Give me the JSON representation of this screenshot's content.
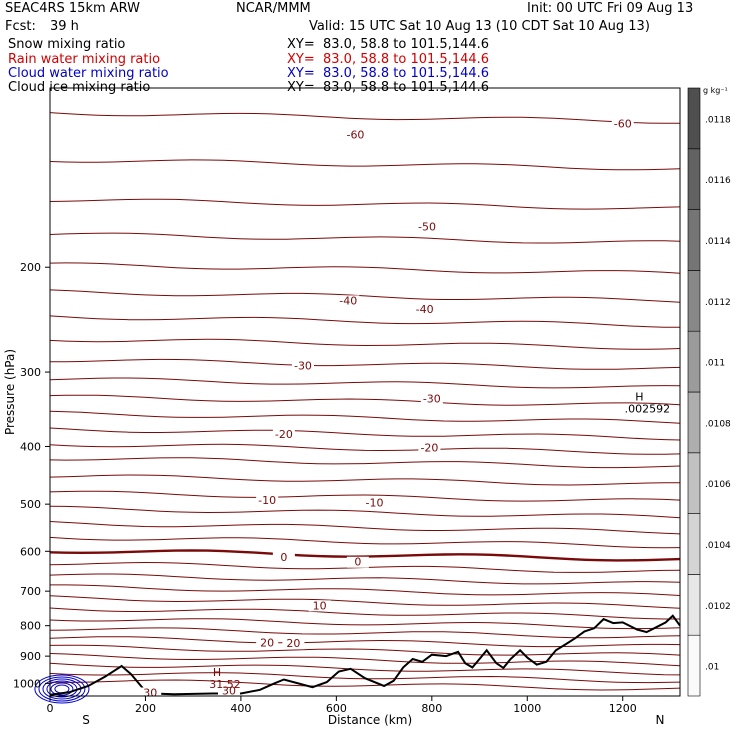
{
  "header": {
    "model": "SEAC4RS 15km ARW",
    "center": "NCAR/MMM",
    "init": "Init: 00 UTC Fri 09 Aug 13",
    "fcst_label": "Fcst:",
    "fcst_value": "39 h",
    "valid": "Valid: 15 UTC Sat 10 Aug 13 (10 CDT Sat 10 Aug 13)"
  },
  "fields": [
    {
      "label": "Snow mixing ratio",
      "xy": "XY=  83.0, 58.8 to 101.5,144.6",
      "color": "#000000"
    },
    {
      "label": "Rain water mixing ratio",
      "xy": "XY=  83.0, 58.8 to 101.5,144.6",
      "color": "#d40000"
    },
    {
      "label": "Cloud water mixing ratio",
      "xy": "XY=  83.0, 58.8 to 101.5,144.6",
      "color": "#0000c8"
    },
    {
      "label": "Cloud ice mixing ratio",
      "xy": "XY=  83.0, 58.8 to 101.5,144.6",
      "color": "#000000"
    }
  ],
  "colors": {
    "temperature_contour": "#7a0a0a",
    "terrain": "#000000",
    "cloud_water": "#0000c8"
  },
  "chart_data": {
    "type": "contour",
    "xlabel": "Distance (km)",
    "ylabel": "Pressure (hPa)",
    "xlim": [
      0,
      1320
    ],
    "ylim": [
      1050,
      100
    ],
    "y_scale": "log",
    "x_ticks": [
      "0",
      "200",
      "400",
      "600",
      "800",
      "1000",
      "1200"
    ],
    "y_ticks": [
      "200",
      "300",
      "400",
      "500",
      "600",
      "700",
      "800",
      "900",
      "1000"
    ],
    "x_endpoint_labels": {
      "left": "S",
      "right": "N"
    },
    "temperature_contour_labels": [
      {
        "text": "-60",
        "x": 640,
        "p": 121
      },
      {
        "text": "-60",
        "x": 1200,
        "p": 116
      },
      {
        "text": "-50",
        "x": 790,
        "p": 173
      },
      {
        "text": "-40",
        "x": 625,
        "p": 230
      },
      {
        "text": "-40",
        "x": 785,
        "p": 238
      },
      {
        "text": "-30",
        "x": 530,
        "p": 296
      },
      {
        "text": "-30",
        "x": 800,
        "p": 336
      },
      {
        "text": "-20",
        "x": 490,
        "p": 386
      },
      {
        "text": "-20",
        "x": 795,
        "p": 406
      },
      {
        "text": "-10",
        "x": 455,
        "p": 498
      },
      {
        "text": "-10",
        "x": 680,
        "p": 503
      },
      {
        "text": "0",
        "x": 490,
        "p": 620
      },
      {
        "text": "0",
        "x": 645,
        "p": 632
      },
      {
        "text": "10",
        "x": 565,
        "p": 748
      },
      {
        "text": "20",
        "x": 455,
        "p": 864
      },
      {
        "text": "20",
        "x": 510,
        "p": 866
      },
      {
        "text": "30",
        "x": 210,
        "p": 1048
      },
      {
        "text": "30",
        "x": 375,
        "p": 1040
      }
    ],
    "extremum_labels": [
      {
        "symbol": "H",
        "value": "31.52",
        "x": 350,
        "p": 1010
      },
      {
        "symbol": "H",
        "value": ".002592",
        "x": 1235,
        "p": 348
      }
    ],
    "colorbar": {
      "unit": "g kg⁻¹",
      "labels": [
        ".01",
        ".0102",
        ".0104",
        ".0106",
        ".0108",
        ".011",
        ".0112",
        ".0114",
        ".0116",
        ".0118"
      ]
    },
    "terrain_profile": [
      {
        "x": 0,
        "p": 1045
      },
      {
        "x": 40,
        "p": 1035
      },
      {
        "x": 80,
        "p": 1010
      },
      {
        "x": 115,
        "p": 975
      },
      {
        "x": 150,
        "p": 935
      },
      {
        "x": 170,
        "p": 965
      },
      {
        "x": 195,
        "p": 1020
      },
      {
        "x": 215,
        "p": 1040
      },
      {
        "x": 260,
        "p": 1043
      },
      {
        "x": 340,
        "p": 1040
      },
      {
        "x": 400,
        "p": 1040
      },
      {
        "x": 440,
        "p": 1025
      },
      {
        "x": 470,
        "p": 1000
      },
      {
        "x": 490,
        "p": 985
      },
      {
        "x": 520,
        "p": 1000
      },
      {
        "x": 550,
        "p": 1015
      },
      {
        "x": 580,
        "p": 995
      },
      {
        "x": 605,
        "p": 955
      },
      {
        "x": 630,
        "p": 945
      },
      {
        "x": 660,
        "p": 980
      },
      {
        "x": 700,
        "p": 1010
      },
      {
        "x": 720,
        "p": 990
      },
      {
        "x": 740,
        "p": 940
      },
      {
        "x": 760,
        "p": 910
      },
      {
        "x": 780,
        "p": 920
      },
      {
        "x": 800,
        "p": 895
      },
      {
        "x": 830,
        "p": 900
      },
      {
        "x": 855,
        "p": 885
      },
      {
        "x": 870,
        "p": 925
      },
      {
        "x": 885,
        "p": 940
      },
      {
        "x": 905,
        "p": 900
      },
      {
        "x": 915,
        "p": 880
      },
      {
        "x": 935,
        "p": 925
      },
      {
        "x": 950,
        "p": 942
      },
      {
        "x": 965,
        "p": 910
      },
      {
        "x": 985,
        "p": 880
      },
      {
        "x": 1000,
        "p": 905
      },
      {
        "x": 1020,
        "p": 930
      },
      {
        "x": 1040,
        "p": 920
      },
      {
        "x": 1060,
        "p": 880
      },
      {
        "x": 1080,
        "p": 860
      },
      {
        "x": 1100,
        "p": 840
      },
      {
        "x": 1120,
        "p": 818
      },
      {
        "x": 1140,
        "p": 808
      },
      {
        "x": 1160,
        "p": 780
      },
      {
        "x": 1180,
        "p": 792
      },
      {
        "x": 1200,
        "p": 790
      },
      {
        "x": 1230,
        "p": 812
      },
      {
        "x": 1250,
        "p": 820
      },
      {
        "x": 1270,
        "p": 805
      },
      {
        "x": 1290,
        "p": 790
      },
      {
        "x": 1305,
        "p": 770
      },
      {
        "x": 1320,
        "p": 800
      }
    ]
  }
}
